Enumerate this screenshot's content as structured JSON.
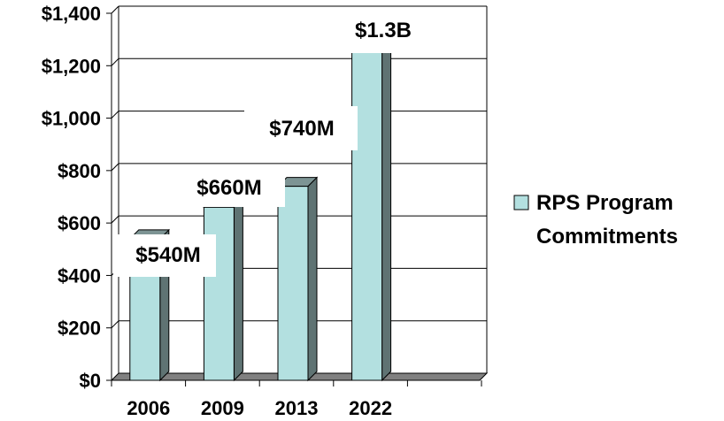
{
  "colors": {
    "bar_face": "#b3e0e0",
    "bar_side": "#5f7373",
    "bar_top": "#7d9494",
    "floor": "#808080",
    "grid": "#000000"
  },
  "chart_data": {
    "type": "bar",
    "title": "",
    "xlabel": "",
    "ylabel": "",
    "categories": [
      "2006",
      "2009",
      "2013",
      "2022"
    ],
    "series": [
      {
        "name": "RPS Program Commitments",
        "values": [
          540,
          660,
          740,
          1300
        ]
      }
    ],
    "data_labels": [
      "$540M",
      "$660M",
      "$740M",
      "$1.3B"
    ],
    "ylim": [
      0,
      1400
    ],
    "yticks": [
      0,
      200,
      400,
      600,
      800,
      1000,
      1200,
      1400
    ],
    "ytick_labels": [
      "$0",
      "$200",
      "$400",
      "$600",
      "$800",
      "$1,000",
      "$1,200",
      "$1,400"
    ],
    "grid": true,
    "legend": {
      "position": "right",
      "lines": [
        "RPS Program",
        "Commitments"
      ]
    },
    "three_d": true
  }
}
